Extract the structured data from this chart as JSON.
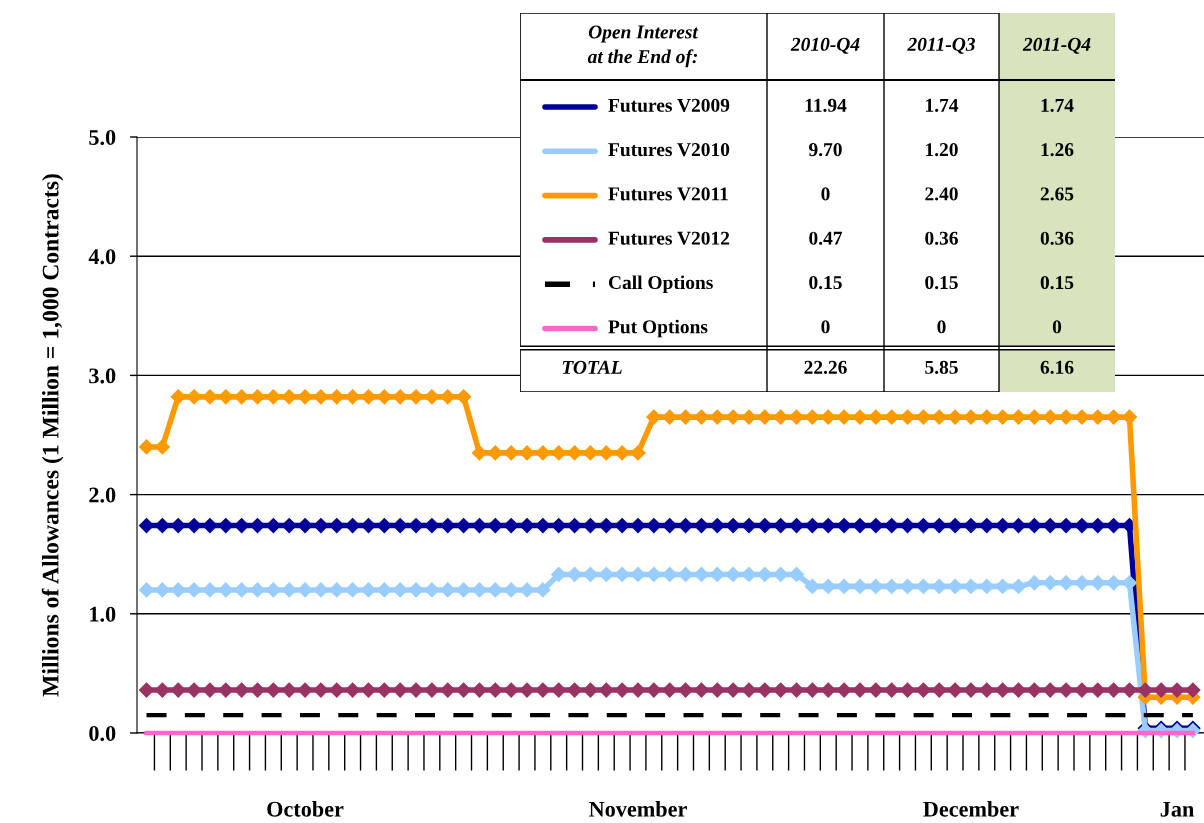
{
  "chart_data": {
    "type": "line",
    "ylabel": "Millions of Allowances (1 Million = 1,000 Contracts)",
    "categories": [
      null,
      null,
      null,
      null,
      null,
      null,
      null,
      null,
      null,
      null,
      "October",
      null,
      null,
      null,
      null,
      null,
      null,
      null,
      null,
      null,
      null,
      null,
      null,
      null,
      null,
      null,
      null,
      null,
      null,
      null,
      null,
      "November",
      null,
      null,
      null,
      null,
      null,
      null,
      null,
      null,
      null,
      null,
      null,
      null,
      null,
      null,
      null,
      null,
      null,
      null,
      null,
      null,
      "December",
      null,
      null,
      null,
      null,
      null,
      null,
      null,
      null,
      null,
      null,
      null,
      null,
      "Jan",
      null
    ],
    "ylim": [
      0,
      5
    ],
    "yticks": [
      {
        "value": 0,
        "label": "0.0"
      },
      {
        "value": 1,
        "label": "1.0"
      },
      {
        "value": 2,
        "label": "2.0"
      },
      {
        "value": 3,
        "label": "3.0"
      },
      {
        "value": 4,
        "label": "4.0"
      },
      {
        "value": 5,
        "label": "5.0"
      }
    ],
    "grid": "y",
    "legend": "top right",
    "series": [
      {
        "name": "Futures V2009",
        "color": "#000099",
        "marker": "diamond",
        "line_style": "solid",
        "values": [
          1.74,
          1.74,
          1.74,
          1.74,
          1.74,
          1.74,
          1.74,
          1.74,
          1.74,
          1.74,
          1.74,
          1.74,
          1.74,
          1.74,
          1.74,
          1.74,
          1.74,
          1.74,
          1.74,
          1.74,
          1.74,
          1.74,
          1.74,
          1.74,
          1.74,
          1.74,
          1.74,
          1.74,
          1.74,
          1.74,
          1.74,
          1.74,
          1.74,
          1.74,
          1.74,
          1.74,
          1.74,
          1.74,
          1.74,
          1.74,
          1.74,
          1.74,
          1.74,
          1.74,
          1.74,
          1.74,
          1.74,
          1.74,
          1.74,
          1.74,
          1.74,
          1.74,
          1.74,
          1.74,
          1.74,
          1.74,
          1.74,
          1.74,
          1.74,
          1.74,
          1.74,
          1.74,
          1.74,
          0.04,
          0.04,
          0.04,
          0.04
        ]
      },
      {
        "name": "Futures V2010",
        "color": "#99ccff",
        "marker": "diamond",
        "line_style": "solid",
        "values": [
          1.2,
          1.2,
          1.2,
          1.2,
          1.2,
          1.2,
          1.2,
          1.2,
          1.2,
          1.2,
          1.2,
          1.2,
          1.2,
          1.2,
          1.2,
          1.2,
          1.2,
          1.2,
          1.2,
          1.2,
          1.2,
          1.2,
          1.2,
          1.2,
          1.2,
          1.2,
          1.33,
          1.33,
          1.33,
          1.33,
          1.33,
          1.33,
          1.33,
          1.33,
          1.33,
          1.33,
          1.33,
          1.33,
          1.33,
          1.33,
          1.33,
          1.33,
          1.23,
          1.23,
          1.23,
          1.23,
          1.23,
          1.23,
          1.23,
          1.23,
          1.23,
          1.23,
          1.23,
          1.23,
          1.23,
          1.23,
          1.26,
          1.26,
          1.26,
          1.26,
          1.26,
          1.26,
          1.26,
          0.02,
          0.02,
          0.02,
          0.02
        ]
      },
      {
        "name": "Futures V2011",
        "color": "#ff9900",
        "marker": "diamond",
        "line_style": "solid",
        "values": [
          2.4,
          2.4,
          2.82,
          2.82,
          2.82,
          2.82,
          2.82,
          2.82,
          2.82,
          2.82,
          2.82,
          2.82,
          2.82,
          2.82,
          2.82,
          2.82,
          2.82,
          2.82,
          2.82,
          2.82,
          2.82,
          2.35,
          2.35,
          2.35,
          2.35,
          2.35,
          2.35,
          2.35,
          2.35,
          2.35,
          2.35,
          2.35,
          2.65,
          2.65,
          2.65,
          2.65,
          2.65,
          2.65,
          2.65,
          2.65,
          2.65,
          2.65,
          2.65,
          2.65,
          2.65,
          2.65,
          2.65,
          2.65,
          2.65,
          2.65,
          2.65,
          2.65,
          2.65,
          2.65,
          2.65,
          2.65,
          2.65,
          2.65,
          2.65,
          2.65,
          2.65,
          2.65,
          2.65,
          0.3,
          0.3,
          0.3,
          0.3
        ]
      },
      {
        "name": "Futures V2012",
        "color": "#993366",
        "marker": "diamond",
        "line_style": "solid",
        "values": [
          0.36,
          0.36,
          0.36,
          0.36,
          0.36,
          0.36,
          0.36,
          0.36,
          0.36,
          0.36,
          0.36,
          0.36,
          0.36,
          0.36,
          0.36,
          0.36,
          0.36,
          0.36,
          0.36,
          0.36,
          0.36,
          0.36,
          0.36,
          0.36,
          0.36,
          0.36,
          0.36,
          0.36,
          0.36,
          0.36,
          0.36,
          0.36,
          0.36,
          0.36,
          0.36,
          0.36,
          0.36,
          0.36,
          0.36,
          0.36,
          0.36,
          0.36,
          0.36,
          0.36,
          0.36,
          0.36,
          0.36,
          0.36,
          0.36,
          0.36,
          0.36,
          0.36,
          0.36,
          0.36,
          0.36,
          0.36,
          0.36,
          0.36,
          0.36,
          0.36,
          0.36,
          0.36,
          0.36,
          0.36,
          0.36,
          0.36,
          0.36
        ]
      },
      {
        "name": "Call Options",
        "color": "#000000",
        "marker": "none",
        "line_style": "dashed",
        "values": [
          0.15,
          0.15,
          0.15,
          0.15,
          0.15,
          0.15,
          0.15,
          0.15,
          0.15,
          0.15,
          0.15,
          0.15,
          0.15,
          0.15,
          0.15,
          0.15,
          0.15,
          0.15,
          0.15,
          0.15,
          0.15,
          0.15,
          0.15,
          0.15,
          0.15,
          0.15,
          0.15,
          0.15,
          0.15,
          0.15,
          0.15,
          0.15,
          0.15,
          0.15,
          0.15,
          0.15,
          0.15,
          0.15,
          0.15,
          0.15,
          0.15,
          0.15,
          0.15,
          0.15,
          0.15,
          0.15,
          0.15,
          0.15,
          0.15,
          0.15,
          0.15,
          0.15,
          0.15,
          0.15,
          0.15,
          0.15,
          0.15,
          0.15,
          0.15,
          0.15,
          0.15,
          0.15,
          0.15,
          0.15,
          0.15,
          0.15,
          0.15
        ]
      },
      {
        "name": "Put Options",
        "color": "#ff66cc",
        "marker": "none",
        "line_style": "solid",
        "values": [
          0,
          0,
          0,
          0,
          0,
          0,
          0,
          0,
          0,
          0,
          0,
          0,
          0,
          0,
          0,
          0,
          0,
          0,
          0,
          0,
          0,
          0,
          0,
          0,
          0,
          0,
          0,
          0,
          0,
          0,
          0,
          0,
          0,
          0,
          0,
          0,
          0,
          0,
          0,
          0,
          0,
          0,
          0,
          0,
          0,
          0,
          0,
          0,
          0,
          0,
          0,
          0,
          0,
          0,
          0,
          0,
          0,
          0,
          0,
          0,
          0,
          0,
          0,
          0,
          0,
          0,
          0
        ]
      }
    ],
    "annotations": [
      "Open Interest\nat the End of:",
      "2010-Q4",
      "2011-Q3",
      "2011-Q4",
      "11.94",
      "1.74",
      "1.74",
      "9.70",
      "1.20",
      "1.26",
      "0",
      "2.40",
      "2.65",
      "0.47",
      "0.36",
      "0.36",
      "0.15",
      "0.15",
      "0.15",
      "0",
      "0",
      "0",
      "TOTAL",
      "22.26",
      "5.85",
      "6.16"
    ]
  }
}
